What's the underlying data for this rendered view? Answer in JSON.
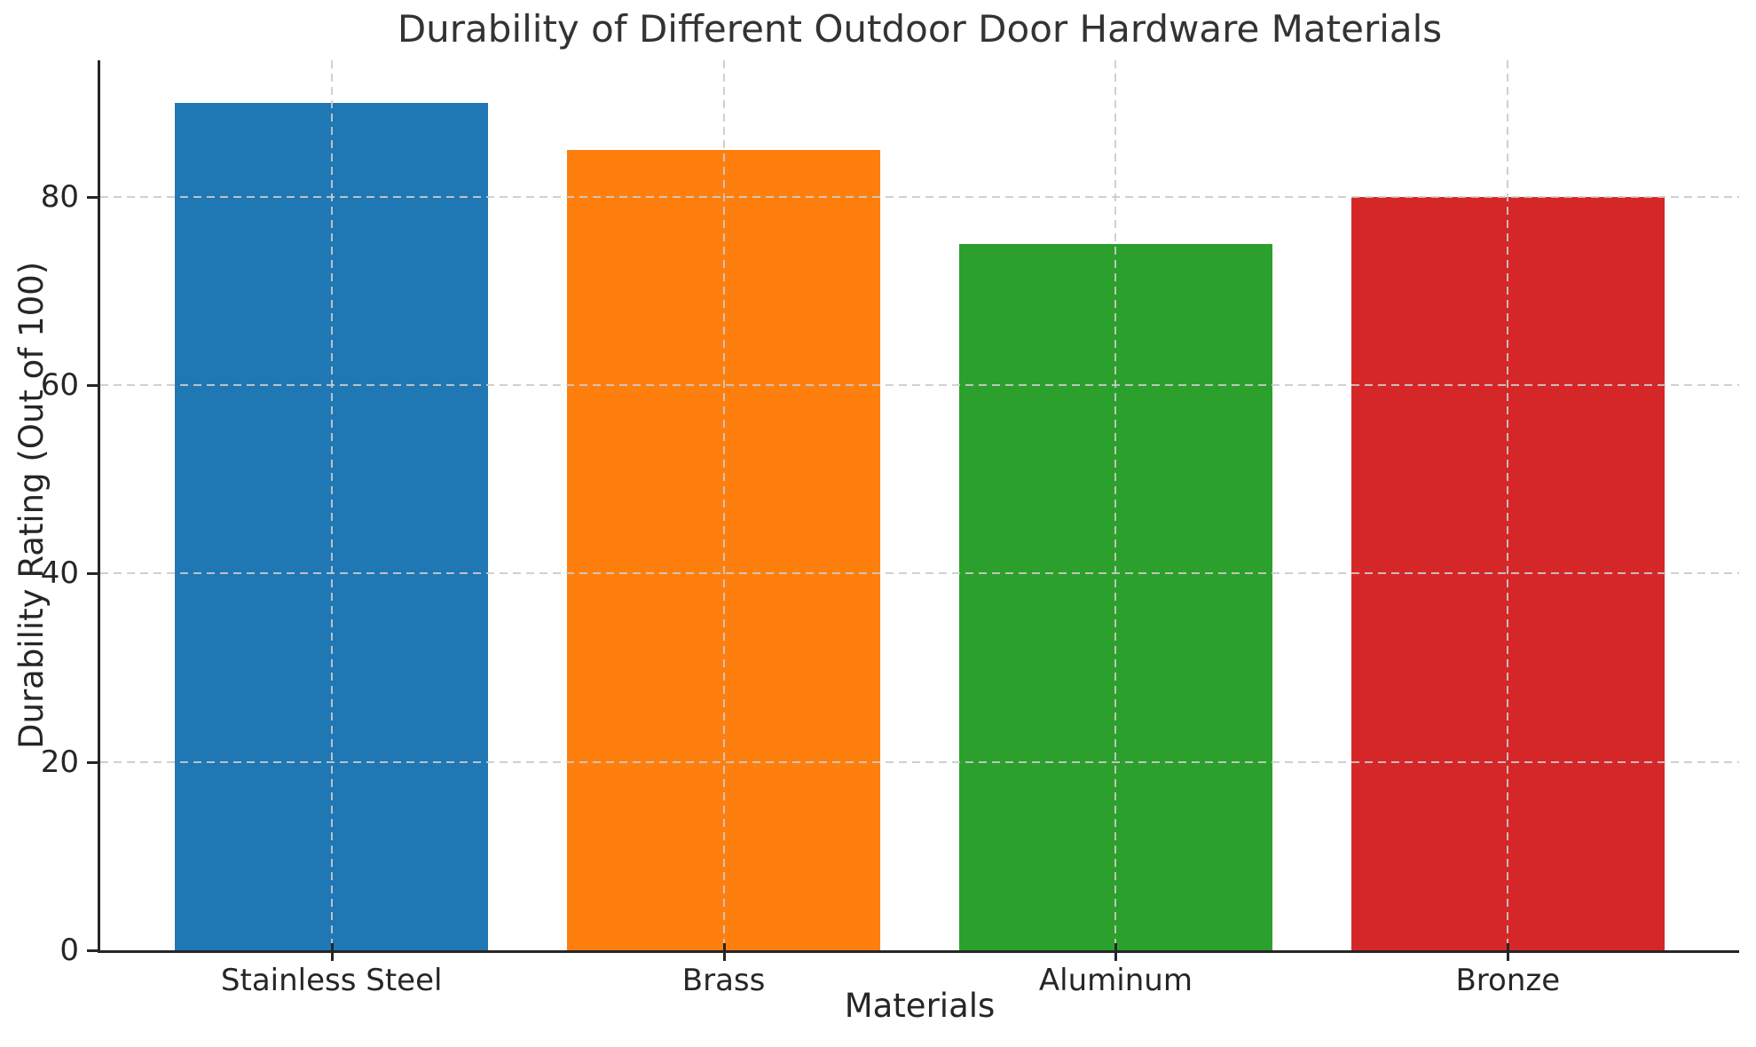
{
  "chart_data": {
    "type": "bar",
    "title": "Durability of Different Outdoor Door Hardware Materials",
    "xlabel": "Materials",
    "ylabel": "Durability Rating (Out of 100)",
    "categories": [
      "Stainless Steel",
      "Brass",
      "Aluminum",
      "Bronze"
    ],
    "values": [
      90,
      85,
      75,
      80
    ],
    "bar_colors": [
      "#1f77b4",
      "#ff7f0e",
      "#2ca02c",
      "#d62728"
    ],
    "bar_width": 0.8,
    "xlim": [
      -0.59,
      3.59
    ],
    "ylim": [
      0,
      94.5
    ],
    "yticks": [
      0,
      20,
      40,
      60,
      80
    ],
    "grid": "dashed, horizontal at yticks and vertical at bar centers, drawn above bars",
    "grid_color": "#cbcbcb",
    "spines": [
      "left",
      "bottom"
    ],
    "spine_color": "#262626",
    "text_color": "#262626",
    "title_color": "#333333",
    "background_color": "#ffffff",
    "legend": "none"
  }
}
